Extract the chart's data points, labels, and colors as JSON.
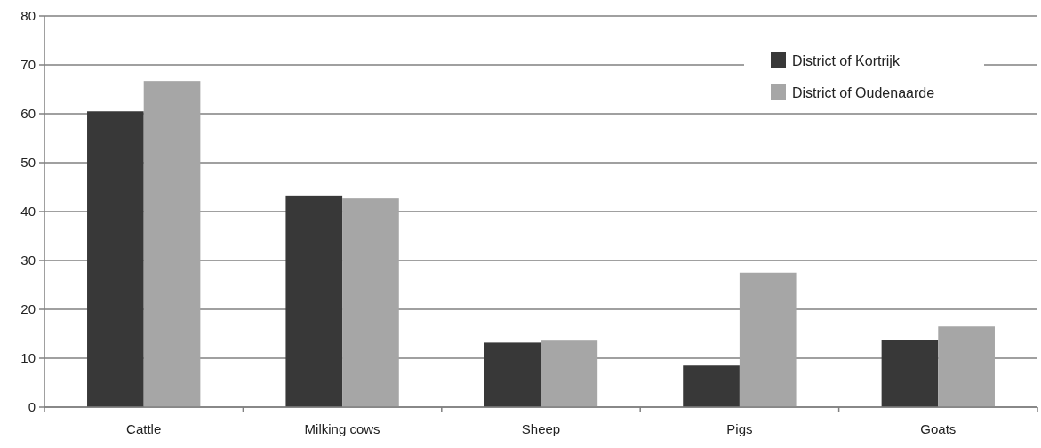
{
  "chart_data": {
    "type": "bar",
    "categories": [
      "Cattle",
      "Milking cows",
      "Sheep",
      "Pigs",
      "Goats"
    ],
    "series": [
      {
        "name": "District of Kortrijk",
        "color": "#383838",
        "values": [
          60.5,
          43.3,
          13.2,
          8.5,
          13.7
        ]
      },
      {
        "name": "District of Oudenaarde",
        "color": "#a6a6a6",
        "values": [
          66.7,
          42.7,
          13.6,
          27.5,
          16.5
        ]
      }
    ],
    "ylim": [
      0,
      80
    ],
    "yticks": [
      0,
      10,
      20,
      30,
      40,
      50,
      60,
      70,
      80
    ],
    "grid": "y",
    "legend": "top right"
  }
}
